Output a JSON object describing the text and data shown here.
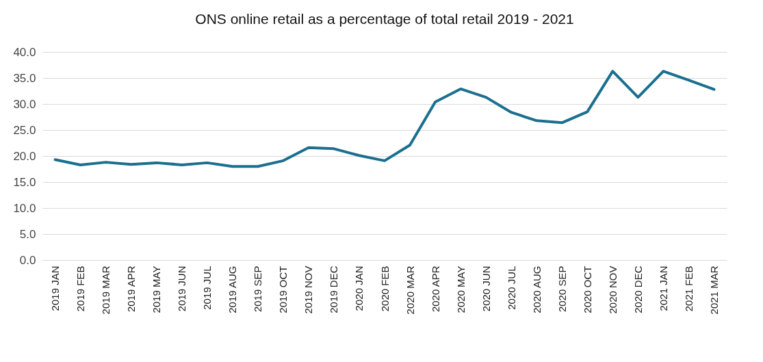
{
  "chart_data": {
    "type": "line",
    "title": "ONS online retail as a percentage of total retail 2019 - 2021",
    "categories": [
      "2019 JAN",
      "2019 FEB",
      "2019 MAR",
      "2019 APR",
      "2019 MAY",
      "2019 JUN",
      "2019 JUL",
      "2019 AUG",
      "2019 SEP",
      "2019 OCT",
      "2019 NOV",
      "2019 DEC",
      "2020 JAN",
      "2020 FEB",
      "2020 MAR",
      "2020 APR",
      "2020 MAY",
      "2020 JUN",
      "2020 JUL",
      "2020 AUG",
      "2020 SEP",
      "2020 OCT",
      "2020 NOV",
      "2020 DEC",
      "2021 JAN",
      "2021 FEB",
      "2021 MAR"
    ],
    "series": [
      {
        "color": "#1b6f8f",
        "values": [
          19.3,
          18.3,
          18.8,
          18.4,
          18.7,
          18.3,
          18.7,
          18.0,
          18.0,
          19.1,
          21.6,
          21.4,
          20.1,
          19.1,
          22.1,
          30.4,
          32.9,
          31.3,
          28.4,
          26.8,
          26.4,
          28.5,
          36.3,
          31.3,
          36.3,
          34.6,
          32.8
        ]
      }
    ],
    "ylim": [
      0,
      40
    ],
    "yticks": [
      {
        "value": 0,
        "label": "0.0"
      },
      {
        "value": 5,
        "label": "5.0"
      },
      {
        "value": 10,
        "label": "10.0"
      },
      {
        "value": 15,
        "label": "15.0"
      },
      {
        "value": 20,
        "label": "20.0"
      },
      {
        "value": 25,
        "label": "25.0"
      },
      {
        "value": 30,
        "label": "30.0"
      },
      {
        "value": 35,
        "label": "35.0"
      },
      {
        "value": 40,
        "label": "40.0"
      }
    ],
    "grid": "y",
    "marker": "none",
    "line_style": "solid"
  }
}
